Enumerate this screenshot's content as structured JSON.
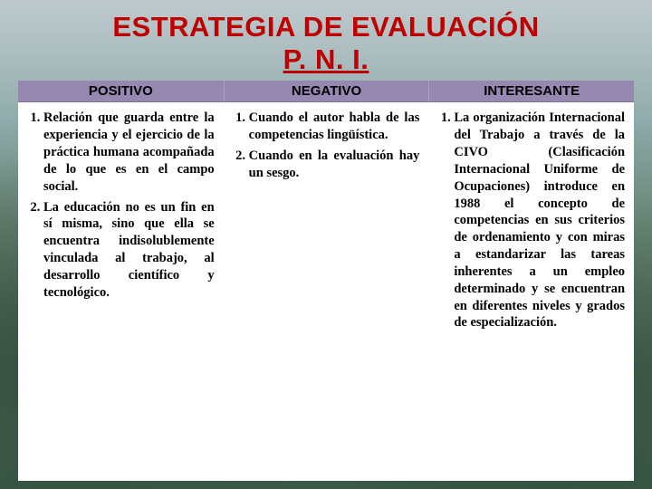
{
  "title_line1": "ESTRATEGIA DE EVALUACIÓN",
  "title_line2": "P. N. I.",
  "header_bg": "#9688b0",
  "title_color": "#c00000",
  "columns": [
    {
      "header": "POSITIVO",
      "items": [
        "Relación que guarda entre la experiencia y el ejercicio de la práctica humana acompañada de lo que es en el campo social.",
        "La educación no es un fin en sí misma, sino que ella se encuentra indisolublemente vinculada al trabajo, al desarrollo científico y tecnológico."
      ]
    },
    {
      "header": "NEGATIVO",
      "items": [
        "Cuando el autor habla de las competencias lingüística.",
        "Cuando en la evaluación hay un sesgo."
      ]
    },
    {
      "header": "INTERESANTE",
      "items": [
        "La organización Internacional del Trabajo a través de la CIVO (Clasificación Internacional Uniforme de Ocupaciones) introduce en 1988 el concepto de competencias en sus criterios de ordenamiento y con miras a estandarizar las tareas inherentes a un empleo determinado y se encuentran en diferentes niveles y grados de especialización."
      ]
    }
  ]
}
